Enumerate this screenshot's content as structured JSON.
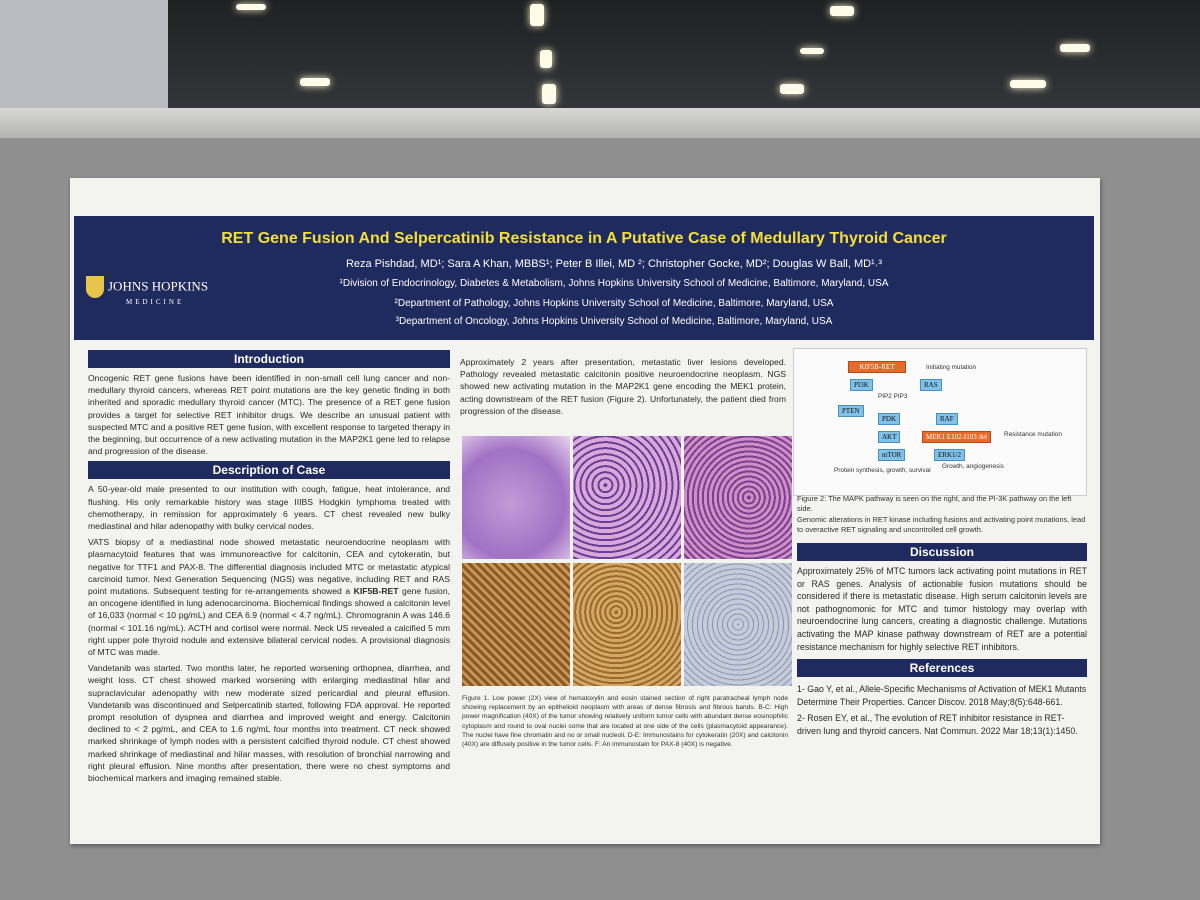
{
  "header": {
    "title": "RET Gene Fusion And Selpercatinib Resistance in A Putative Case of Medullary Thyroid Cancer",
    "authors": "Reza Pishdad, MD¹; Sara A Khan, MBBS¹; Peter B Illei, MD ²; Christopher Gocke, MD²; Douglas W Ball, MD¹˒³",
    "affiliations": [
      "¹Division of Endocrinology, Diabetes & Metabolism, Johns Hopkins University School of Medicine, Baltimore, Maryland, USA",
      "²Department of Pathology, Johns Hopkins University School of Medicine, Baltimore, Maryland, USA",
      "³Department of Oncology, Johns Hopkins University School of Medicine, Baltimore, Maryland, USA"
    ],
    "logo": {
      "name": "JOHNS HOPKINS",
      "sub": "MEDICINE"
    }
  },
  "introduction": {
    "heading": "Introduction",
    "text": "Oncogenic RET gene fusions have been identified in non-small cell lung cancer and non-medullary thyroid cancers, whereas RET point mutations are the key genetic finding in both inherited and sporadic medullary thyroid cancer (MTC). The presence of a RET gene fusion provides a target for selective RET inhibitor drugs. We describe an unusual patient with suspected MTC and a positive RET gene fusion, with excellent response to targeted therapy in the beginning, but occurrence of a new activating mutation in the MAP2K1 gene led to relapse and progression of the disease."
  },
  "case": {
    "heading": "Description of Case",
    "p1": "A 50-year-old male presented to our institution with cough, fatigue, heat intolerance, and flushing. His only remarkable history was stage IIIBS Hodgkin lymphoma treated with chemotherapy, in remission for approximately 6 years. CT chest revealed new bulky mediastinal and hilar adenopathy with bulky cervical nodes.",
    "p2": [
      "VATS biopsy of a mediastinal node showed metastatic neuroendocrine neoplasm with plasmacytoid features that was immunoreactive for calcitonin, CEA and cytokeratin, but negative for TTF1 and PAX-8. The differential diagnosis included MTC or metastatic atypical carcinoid tumor. Next Generation Sequencing (NGS) was negative, including RET and RAS point mutations. Subsequent testing for re-arrangements showed a ",
      "KIF5B-RET",
      " gene fusion, an oncogene identified in lung adenocarcinoma. Biochemical findings showed a calcitonin level of 16,033 (normal < 10 pg/mL) and CEA 6.9 (normal < 4.7 ng/mL). Chromogranin A was 146.6 (normal < 101.16 ng/mL). ACTH and cortisol were normal. Neck US revealed a calcified 5 mm right upper pole thyroid nodule and extensive bilateral cervical nodes. A provisional diagnosis of MTC was made."
    ],
    "p3": "Vandetanib was started. Two months later, he reported worsening orthopnea, diarrhea, and weight loss. CT chest showed marked worsening with enlarging mediastinal hilar and supraclavicular adenopathy with new moderate sized pericardial and pleural effusion. Vandetanib was discontinued and Selpercatinib started, following FDA approval. He reported prompt resolution of dyspnea and diarrhea and improved weight and energy. Calcitonin declined to < 2 pg/mL, and CEA to 1.6 ng/mL four months into treatment. CT neck showed marked shrinkage of lymph nodes with a persistent calcified thyroid nodule. CT chest showed marked shrinkage of mediastinal and hilar masses, with resolution of bronchial narrowing and right pleural effusion. Nine months after presentation, there were no chest symptoms and biochemical markers and imaging remained stable.",
    "p4": "Approximately 2 years after presentation, metastatic liver lesions developed. Pathology revealed metastatic calcitonin positive neuroendocrine neoplasm. NGS showed new activating mutation in the MAP2K1 gene encoding the MEK1 protein, acting downstream of the RET fusion (Figure 2). Unfortunately, the patient died from progression of the disease."
  },
  "figure1": {
    "caption": "Figure 1. Low power (2X) view of hematoxylin and eosin stained section of right paratracheal lymph node showing replacement by an epithelioid neoplasm with areas of dense fibrosis and fibrous bands. B-C: High power magnification (40X) of the tumor showing relatively uniform tumor cells with abundant dense eosinophilic cytoplasm and round to oval nuclei some that are located at one side of the cells (plasmacytoid appearance). The nuclei have fine chromatin and no or small nucleoli. D-E: Immunostains for cytokeratin (20X) and calcitonin (40X) are diffusely positive in the tumor cells. F: An immunostain for PAX-8 (40X) is negative."
  },
  "figure2": {
    "nodes": [
      "KIF5B-RET",
      "PI3K",
      "RAS",
      "PIP2 PIP3",
      "PTEN",
      "PDK",
      "AKT",
      "mTOR",
      "RAF",
      "MEK1 E102-I103 del",
      "ERK1/2"
    ],
    "notes": [
      "Initiating mutation",
      "Resistance mutation",
      "Protein synthesis, growth, survival",
      "Growth, angiogenesis"
    ],
    "caption": [
      "Figure 2: The MAPK pathway is seen on the right, and the PI-3K pathway on the left side.",
      "Genomic alterations in RET kinase including fusions and activating point mutations, lead to overactive RET signaling and uncontrolled cell growth."
    ]
  },
  "discussion": {
    "heading": "Discussion",
    "text": "Approximately 25% of MTC tumors lack activating point mutations in RET or RAS genes. Analysis of actionable fusion mutations should be considered if there is metastatic disease. High serum calcitonin levels are not pathognomonic for MTC and tumor histology may overlap with neuroendocrine lung cancers, creating a diagnostic challenge. Mutations activating the MAP kinase pathway downstream of RET are a potential resistance mechanism for highly selective RET inhibitors."
  },
  "references": {
    "heading": "References",
    "items": [
      "1- Gao Y, et al., Allele-Specific Mechanisms of Activation of MEK1 Mutants Determine Their Properties. Cancer Discov. 2018 May;8(5):648-661.",
      "2- Rosen EY, et al., The evolution of RET inhibitor resistance in RET-driven lung and thyroid cancers. Nat Commun. 2022 Mar 18;13(1):1450."
    ]
  }
}
